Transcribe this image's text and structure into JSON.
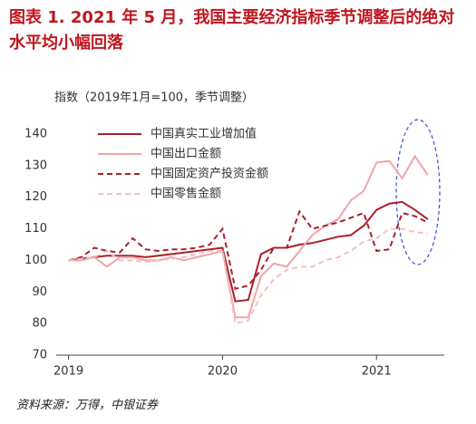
{
  "chart_data": {
    "type": "line",
    "title": "图表 1. 2021 年 5 月，我国主要经济指标季节调整后的绝对水平均小幅回落",
    "y_label": "指数（2019年1月=100，季节调整）",
    "source": "资料来源：万得，中银证券",
    "x": [
      2019,
      2019.083,
      2019.167,
      2019.25,
      2019.333,
      2019.417,
      2019.5,
      2019.583,
      2019.667,
      2019.75,
      2019.833,
      2019.917,
      2020,
      2020.083,
      2020.167,
      2020.25,
      2020.333,
      2020.417,
      2020.5,
      2020.583,
      2020.667,
      2020.75,
      2020.833,
      2020.917,
      2021,
      2021.083,
      2021.167,
      2021.25,
      2021.333
    ],
    "xlim": [
      2018.92,
      2021.44
    ],
    "xticks": [
      2019,
      2020,
      2021
    ],
    "ylim": [
      70,
      140
    ],
    "yticks": [
      70,
      80,
      90,
      100,
      110,
      120,
      130,
      140
    ],
    "series": [
      {
        "name": "中国真实工业增加值",
        "color": "#a8202a",
        "dash": "solid",
        "values": [
          100,
          100.5,
          101,
          101.5,
          101.5,
          101.5,
          101,
          101.5,
          102,
          102.5,
          103,
          103.5,
          104,
          87,
          87.5,
          102,
          104,
          104,
          105,
          105.5,
          106.5,
          107.5,
          108,
          111,
          116,
          118,
          118.5,
          116,
          113
        ]
      },
      {
        "name": "中国出口金额",
        "color": "#f0a5a8",
        "dash": "solid",
        "values": [
          100,
          100,
          101,
          98,
          101,
          101,
          100,
          100,
          101,
          100,
          101,
          102,
          103,
          82,
          82,
          95,
          99,
          98,
          103,
          108,
          111,
          113,
          119,
          122,
          131,
          131.5,
          126,
          133,
          127
        ]
      },
      {
        "name": "中国固定资产投资金额",
        "color": "#a8202a",
        "dash": "dashed",
        "values": [
          100,
          101,
          104,
          103,
          102.5,
          107,
          103.5,
          103,
          103.5,
          103.5,
          104,
          105,
          110,
          91,
          92,
          97,
          104,
          104,
          115.5,
          110,
          111,
          112,
          113.5,
          115,
          103,
          103.5,
          115,
          114,
          112
        ]
      },
      {
        "name": "中国零售金额",
        "color": "#f3c0c0",
        "dash": "dashed",
        "values": [
          100,
          100.5,
          101,
          103,
          100,
          100,
          99.5,
          100,
          100.5,
          101,
          102,
          103,
          103,
          80,
          81,
          89,
          94,
          97,
          98,
          98,
          100,
          101,
          103,
          106,
          107,
          110,
          110,
          109,
          108.5
        ]
      }
    ]
  }
}
